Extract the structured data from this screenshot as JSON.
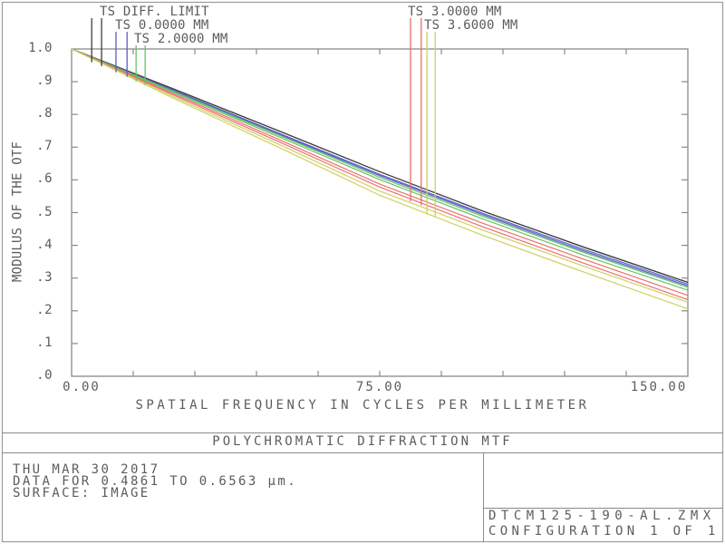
{
  "window": {
    "border_color": "#9b9b9b",
    "background": "#ffffff"
  },
  "colors": {
    "text": "#5c5c5c",
    "frame": "#8a8a8a"
  },
  "titles": {
    "plot_title": "POLYCHROMATIC DIFFRACTION MTF",
    "x_axis": "SPATIAL FREQUENCY IN CYCLES PER MILLIMETER",
    "y_axis": "MODULUS OF THE OTF"
  },
  "footer": {
    "date": "THU MAR 30 2017",
    "data_range": "DATA FOR 0.4861 TO 0.6563 µm.",
    "surface": "SURFACE: IMAGE",
    "file": "DTCM125-190-AL.ZMX",
    "configuration": "CONFIGURATION 1 OF 1"
  },
  "chart_data": {
    "type": "line",
    "title": "POLYCHROMATIC DIFFRACTION MTF",
    "xlabel": "SPATIAL FREQUENCY IN CYCLES PER MILLIMETER",
    "ylabel": "MODULUS OF THE OTF",
    "xlim": [
      0,
      150
    ],
    "ylim": [
      0,
      1
    ],
    "grid": false,
    "x_minor_step": 15,
    "y_minor_step": 0.1,
    "x_tick_labels": [
      {
        "value": 0,
        "label": "0.00"
      },
      {
        "value": 75,
        "label": "75.00"
      },
      {
        "value": 150,
        "label": "150.00"
      }
    ],
    "y_tick_labels": [
      {
        "value": 1.0,
        "label": "1.0"
      },
      {
        "value": 0.9,
        "label": ".9"
      },
      {
        "value": 0.8,
        "label": ".8"
      },
      {
        "value": 0.7,
        "label": ".7"
      },
      {
        "value": 0.6,
        "label": ".6"
      },
      {
        "value": 0.5,
        "label": ".5"
      },
      {
        "value": 0.4,
        "label": ".4"
      },
      {
        "value": 0.3,
        "label": ".3"
      },
      {
        "value": 0.2,
        "label": ".2"
      },
      {
        "value": 0.1,
        "label": ".1"
      },
      {
        "value": 0.0,
        "label": ".0"
      }
    ],
    "x": [
      0,
      25,
      50,
      75,
      100,
      125,
      150
    ],
    "series": [
      {
        "name": "TS DIFF. LIMIT",
        "color": "#3e3e3e",
        "t": [
          1.0,
          0.877,
          0.752,
          0.625,
          0.505,
          0.393,
          0.287
        ],
        "s": [
          1.0,
          0.877,
          0.752,
          0.625,
          0.505,
          0.393,
          0.287
        ]
      },
      {
        "name": "TS 0.0000 MM",
        "color": "#5c5ccd",
        "t": [
          1.0,
          0.873,
          0.745,
          0.617,
          0.498,
          0.386,
          0.281
        ],
        "s": [
          1.0,
          0.871,
          0.742,
          0.613,
          0.494,
          0.381,
          0.276
        ]
      },
      {
        "name": "TS 2.0000 MM",
        "color": "#63c463",
        "t": [
          1.0,
          0.869,
          0.739,
          0.608,
          0.489,
          0.377,
          0.272
        ],
        "s": [
          1.0,
          0.866,
          0.734,
          0.601,
          0.481,
          0.368,
          0.263
        ]
      },
      {
        "name": "TS 3.0000 MM",
        "color": "#ec6f6f",
        "t": [
          1.0,
          0.862,
          0.726,
          0.587,
          0.468,
          0.356,
          0.247
        ],
        "s": [
          1.0,
          0.858,
          0.719,
          0.578,
          0.457,
          0.344,
          0.234
        ]
      },
      {
        "name": "TS 3.6000 MM",
        "color": "#d0d060",
        "t": [
          1.0,
          0.853,
          0.711,
          0.566,
          0.447,
          0.335,
          0.226
        ],
        "s": [
          1.0,
          0.848,
          0.702,
          0.553,
          0.431,
          0.317,
          0.206
        ]
      }
    ],
    "legend": [
      {
        "label": "TS DIFF. LIMIT",
        "series": 0,
        "side": "left",
        "row": 0,
        "marker_f": [
          4.9,
          7.3
        ]
      },
      {
        "label": "TS 0.0000 MM",
        "series": 1,
        "side": "left",
        "row": 1,
        "marker_f": [
          10.8,
          13.5
        ]
      },
      {
        "label": "TS 2.0000 MM",
        "series": 2,
        "side": "left",
        "row": 2,
        "marker_f": [
          15.7,
          17.9
        ]
      },
      {
        "label": "TS 3.0000 MM",
        "series": 3,
        "side": "right",
        "row": 0,
        "marker_f": [
          82.5,
          85.1
        ]
      },
      {
        "label": "TS 3.6000 MM",
        "series": 4,
        "side": "right",
        "row": 1,
        "marker_f": [
          86.5,
          88.5
        ]
      }
    ],
    "legend_position": "top"
  }
}
